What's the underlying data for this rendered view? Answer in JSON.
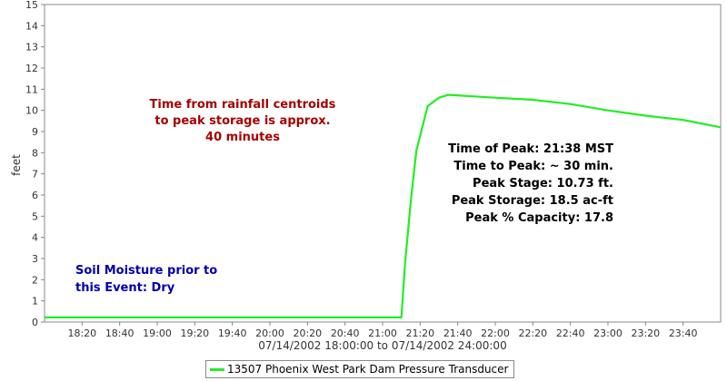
{
  "chart_data": {
    "type": "line",
    "title": "",
    "xlabel": "07/14/2002 18:00:00 to 07/14/2002 24:00:00",
    "ylabel": "feet",
    "xlim": [
      "18:00",
      "24:00"
    ],
    "ylim": [
      0,
      15
    ],
    "yticks": [
      0,
      1,
      2,
      3,
      4,
      5,
      6,
      7,
      8,
      9,
      10,
      11,
      12,
      13,
      14,
      15
    ],
    "xticks": [
      "18:20",
      "18:40",
      "19:00",
      "19:20",
      "19:40",
      "20:00",
      "20:20",
      "20:40",
      "21:00",
      "21:20",
      "21:40",
      "22:00",
      "22:20",
      "22:40",
      "23:00",
      "23:20",
      "23:40"
    ],
    "grid": false,
    "legend_position": "bottom",
    "series": [
      {
        "name": "13507 Phoenix West Park Dam Pressure Transducer",
        "color": "#22ee22",
        "x": [
          "18:00",
          "21:10",
          "21:12",
          "21:15",
          "21:18",
          "21:24",
          "21:30",
          "21:35",
          "21:38",
          "22:00",
          "22:20",
          "22:40",
          "23:00",
          "23:20",
          "23:40",
          "24:00"
        ],
        "y": [
          0.22,
          0.22,
          2.8,
          5.7,
          8.1,
          10.2,
          10.6,
          10.73,
          10.72,
          10.6,
          10.5,
          10.3,
          10.0,
          9.75,
          9.55,
          9.2
        ]
      }
    ],
    "annotations": [
      {
        "id": "centroid",
        "color": "#a50000",
        "align": "center",
        "lines": [
          "Time from rainfall centroids",
          "to peak storage is approx.",
          "40 minutes"
        ]
      },
      {
        "id": "peak",
        "color": "#000000",
        "align": "right",
        "lines": [
          "Time of Peak: 21:38 MST",
          "Time to Peak: ~ 30 min.",
          "Peak Stage: 10.73 ft.",
          "Peak Storage: 18.5 ac-ft",
          "Peak % Capacity: 17.8"
        ]
      },
      {
        "id": "soil",
        "color": "#0000aa",
        "align": "left",
        "lines": [
          "Soil Moisture prior to",
          "this Event: Dry"
        ]
      }
    ]
  }
}
